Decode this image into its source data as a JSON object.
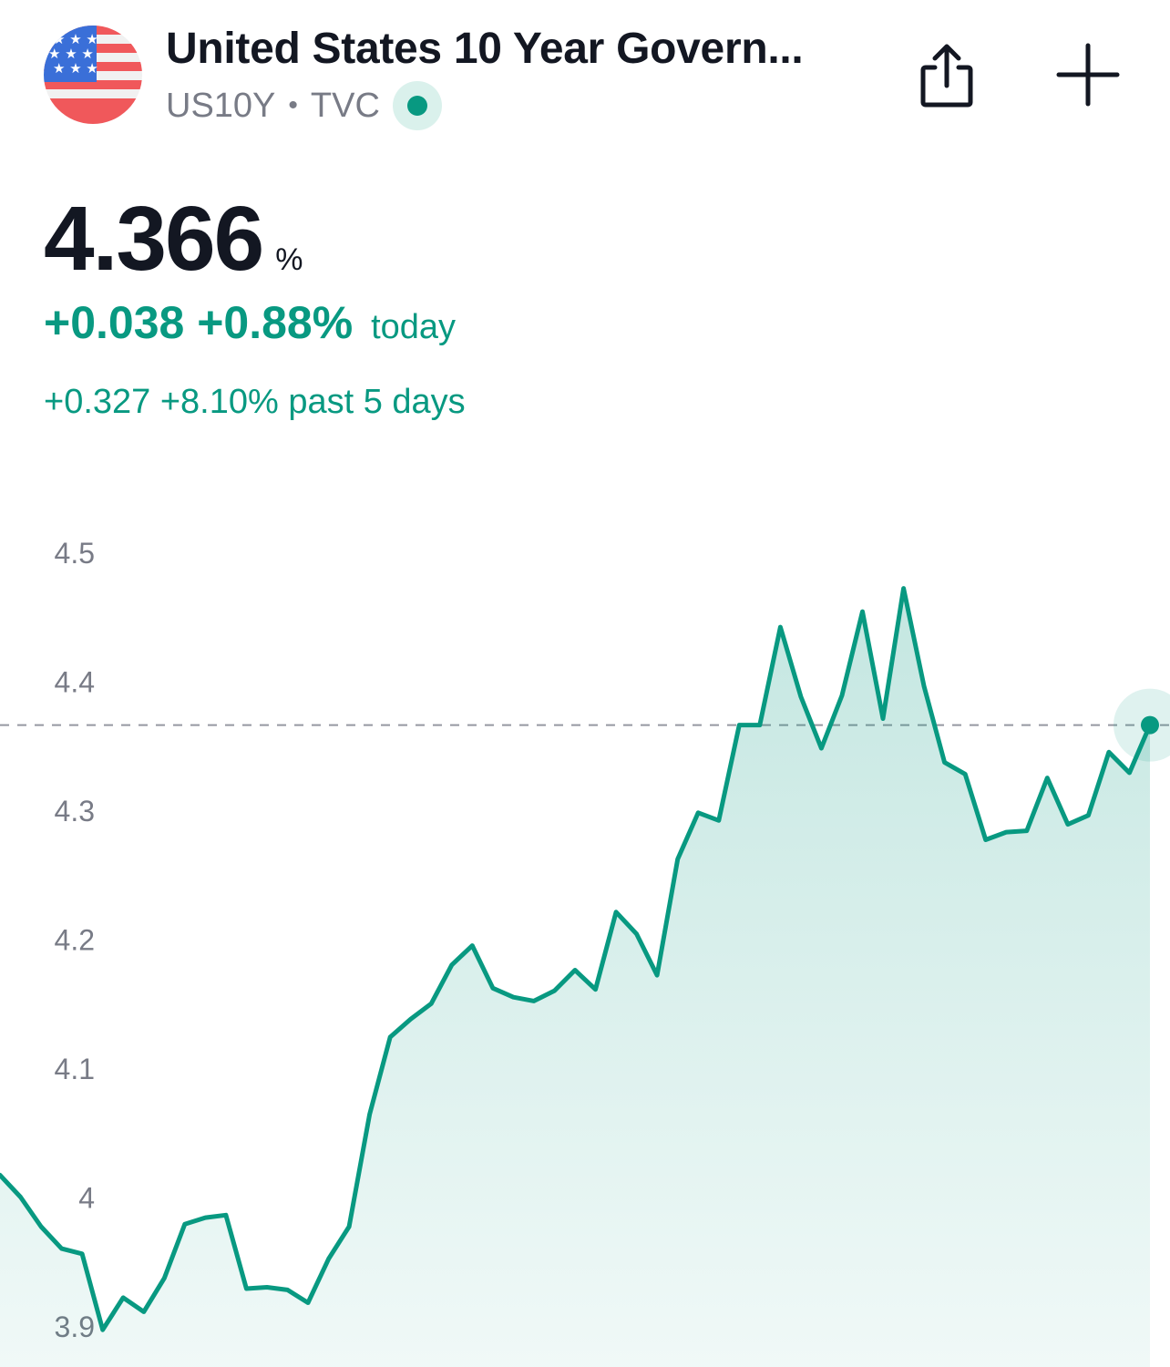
{
  "header": {
    "title": "United States 10 Year Govern...",
    "symbol": "US10Y",
    "separator": "•",
    "exchange": "TVC",
    "logo_icon": "us-flag-icon",
    "share_icon": "share-icon",
    "add_icon": "plus-icon"
  },
  "quote": {
    "price": "4.366",
    "unit": "%",
    "change_today": "+0.038 +0.88%",
    "today_label": "today",
    "change_5d": "+0.327 +8.10% past 5 days"
  },
  "colors": {
    "accent": "#089981",
    "text": "#131722",
    "muted": "#787b86"
  },
  "chart_data": {
    "type": "area",
    "y_ticks": [
      "4.5",
      "4.4",
      "4.3",
      "4.2",
      "4.1",
      "4",
      "3.9"
    ],
    "ylim": [
      3.88,
      4.52
    ],
    "reference_line": 4.366,
    "grid": false,
    "values": [
      4.017,
      4.0,
      3.977,
      3.96,
      3.956,
      3.897,
      3.922,
      3.911,
      3.937,
      3.979,
      3.984,
      3.986,
      3.929,
      3.93,
      3.928,
      3.918,
      3.952,
      3.977,
      4.064,
      4.124,
      4.138,
      4.15,
      4.18,
      4.195,
      4.162,
      4.155,
      4.152,
      4.16,
      4.176,
      4.161,
      4.221,
      4.204,
      4.172,
      4.262,
      4.298,
      4.292,
      4.366,
      4.366,
      4.442,
      4.388,
      4.348,
      4.389,
      4.454,
      4.371,
      4.472,
      4.396,
      4.337,
      4.328,
      4.277,
      4.283,
      4.284,
      4.325,
      4.289,
      4.296,
      4.345,
      4.329,
      4.366
    ]
  }
}
